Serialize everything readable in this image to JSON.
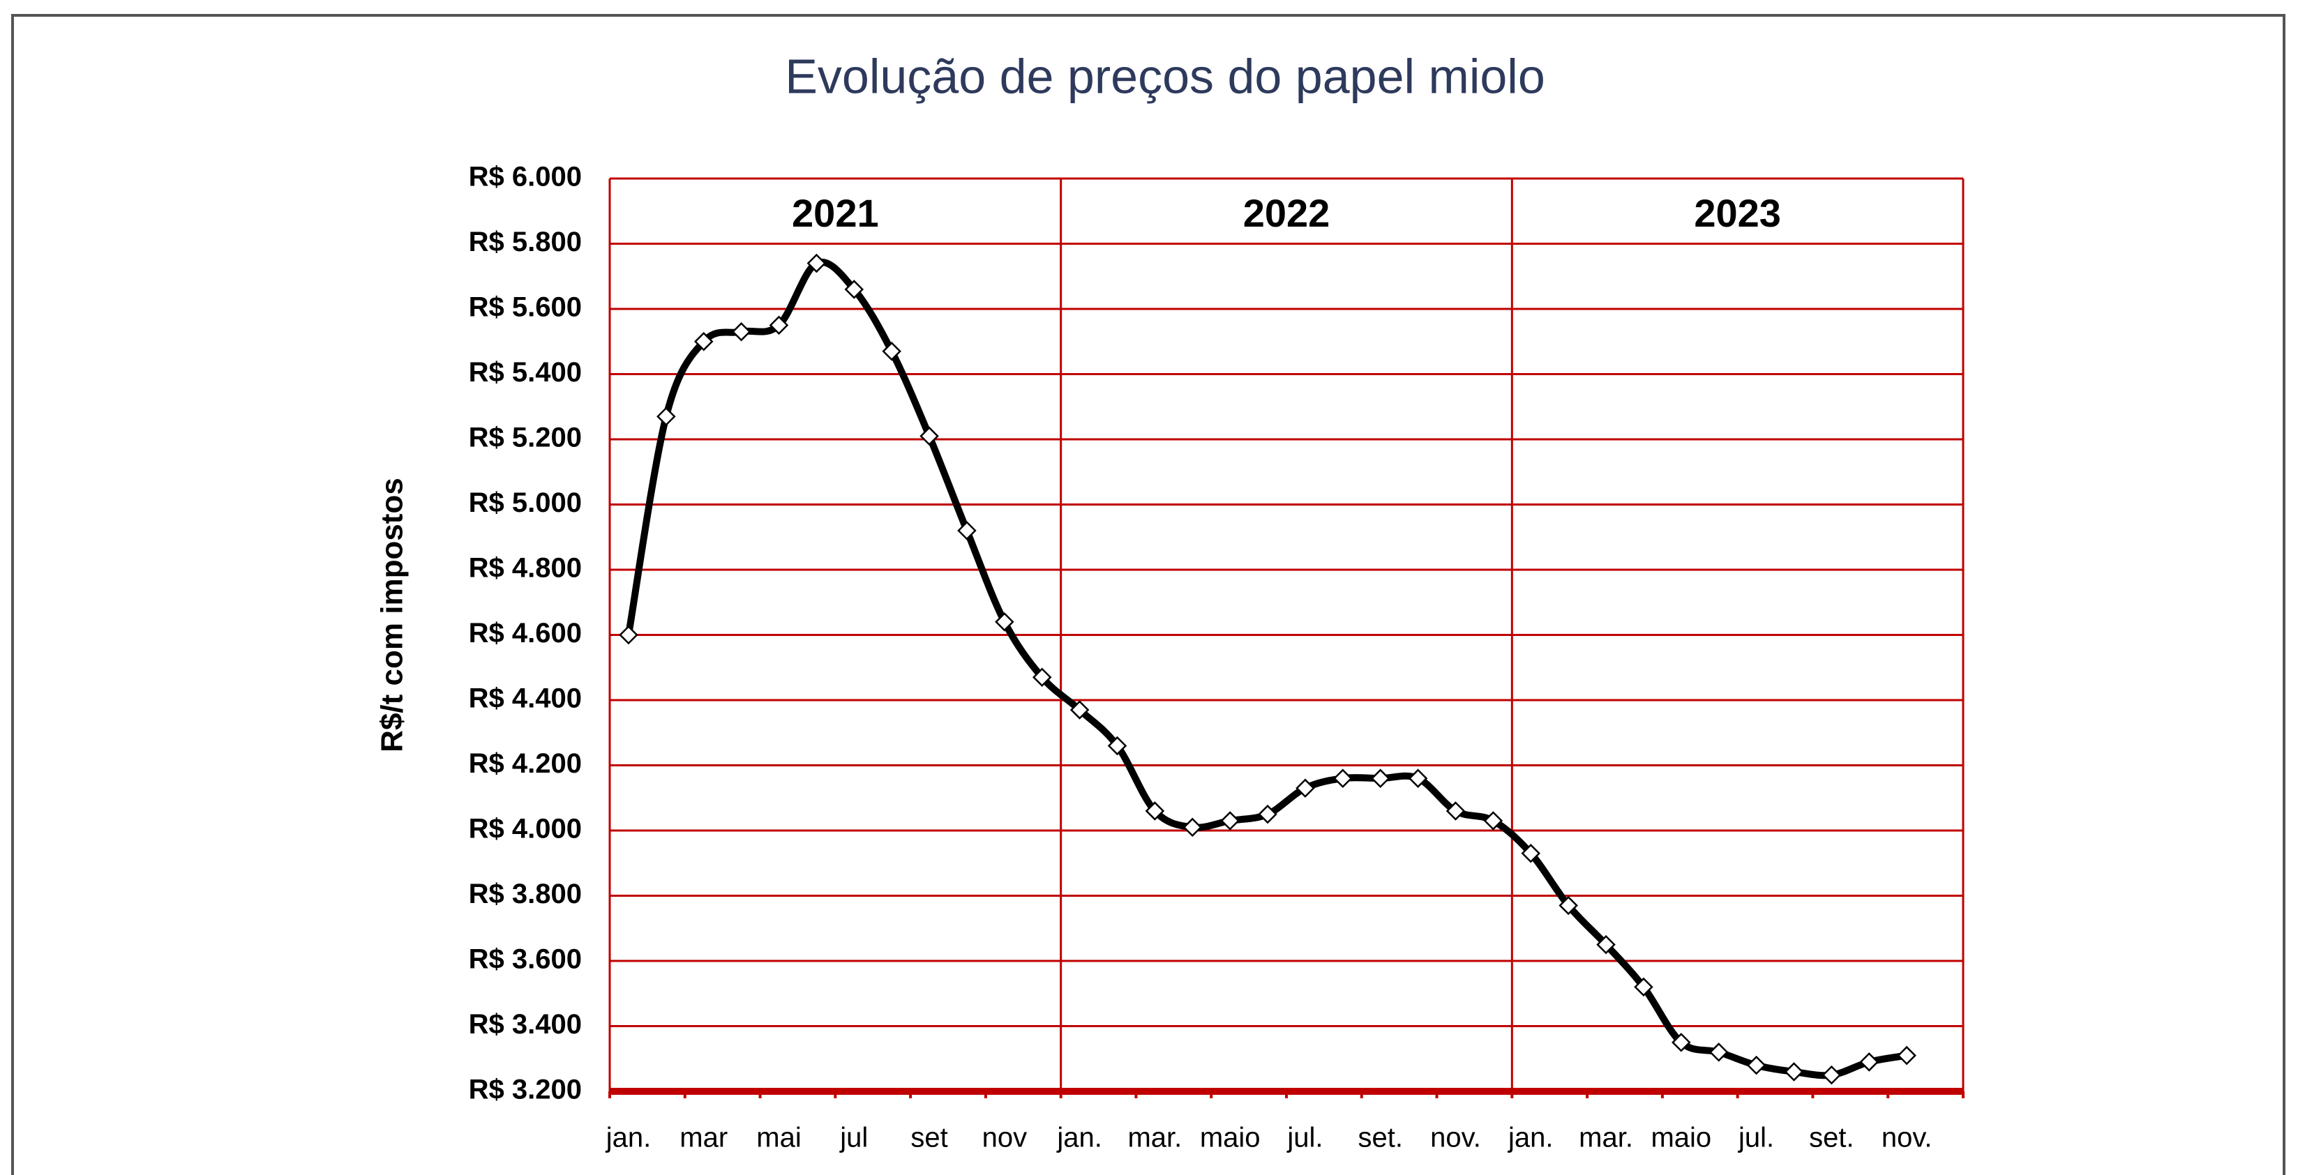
{
  "chart_data": {
    "type": "line",
    "title": "Evolução de preços do papel miolo",
    "y_label": "R$/t com impostos",
    "annotations": [
      "2021",
      "2022",
      "2023"
    ],
    "categories": [
      "jan.",
      null,
      "mar",
      null,
      "mai",
      null,
      "jul",
      null,
      "set",
      null,
      "nov",
      null,
      "jan.",
      null,
      "mar.",
      null,
      "maio",
      null,
      "jul.",
      null,
      "set.",
      null,
      "nov.",
      null,
      "jan.",
      null,
      "mar.",
      null,
      "maio",
      null,
      "jul.",
      null,
      "set.",
      null,
      "nov.",
      null
    ],
    "series": [
      {
        "name": "R$/t com impostos",
        "color": "#000000",
        "marker_color": "#ffffff",
        "values": [
          4600,
          5270,
          5500,
          5530,
          5550,
          5740,
          5660,
          5470,
          5210,
          4920,
          4640,
          4470,
          4370,
          4260,
          4060,
          4010,
          4030,
          4050,
          4130,
          4160,
          4160,
          4160,
          4060,
          4030,
          3930,
          3770,
          3650,
          3520,
          3350,
          3320,
          3280,
          3260,
          3250,
          3290,
          3310,
          null
        ]
      }
    ],
    "ylim": [
      3200,
      6000
    ],
    "yticks": [
      {
        "value": 3200,
        "label": "R$ 3.200"
      },
      {
        "value": 3400,
        "label": "R$ 3.400"
      },
      {
        "value": 3600,
        "label": "R$ 3.600"
      },
      {
        "value": 3800,
        "label": "R$ 3.800"
      },
      {
        "value": 4000,
        "label": "R$ 4.000"
      },
      {
        "value": 4200,
        "label": "R$ 4.200"
      },
      {
        "value": 4400,
        "label": "R$ 4.400"
      },
      {
        "value": 4600,
        "label": "R$ 4.600"
      },
      {
        "value": 4800,
        "label": "R$ 4.800"
      },
      {
        "value": 5000,
        "label": "R$ 5.000"
      },
      {
        "value": 5200,
        "label": "R$ 5.200"
      },
      {
        "value": 5400,
        "label": "R$ 5.400"
      },
      {
        "value": 5600,
        "label": "R$ 5.600"
      },
      {
        "value": 5800,
        "label": "R$ 5.800"
      },
      {
        "value": 6000,
        "label": "R$ 6.000"
      }
    ],
    "grid": true,
    "grid_color": "#c00000"
  }
}
